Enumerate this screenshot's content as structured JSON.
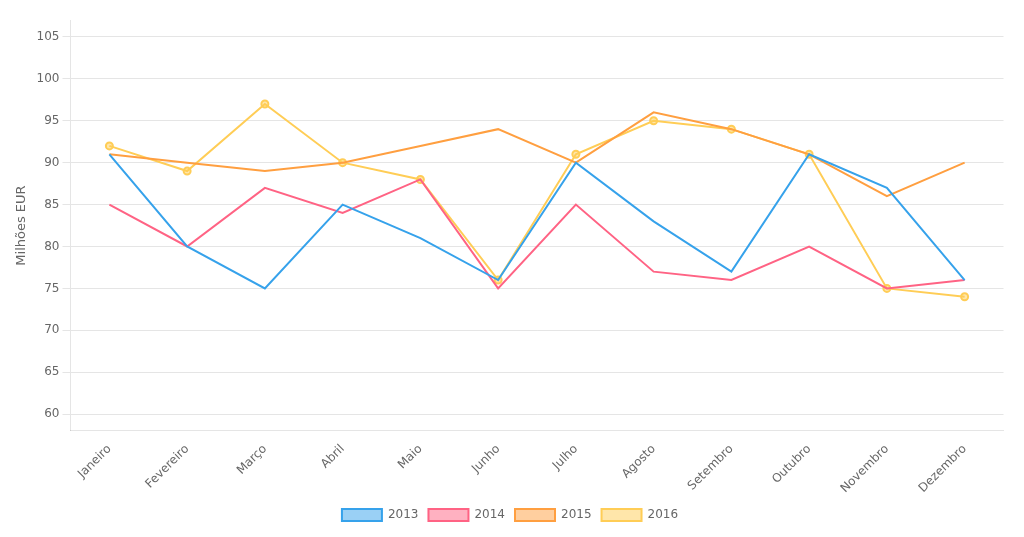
{
  "chart_data": {
    "type": "line",
    "categories": [
      "Janeiro",
      "Fevereiro",
      "Março",
      "Abril",
      "Maio",
      "Junho",
      "Julho",
      "Agosto",
      "Setembro",
      "Outubro",
      "Novembro",
      "Dezembro"
    ],
    "series": [
      {
        "name": "2013",
        "values": [
          91,
          80,
          75,
          85,
          81,
          76,
          90,
          83,
          77,
          91,
          87,
          76
        ],
        "marker": "none"
      },
      {
        "name": "2014",
        "values": [
          85,
          80,
          87,
          84,
          88,
          75,
          85,
          77,
          76,
          80,
          75,
          76
        ],
        "marker": "none"
      },
      {
        "name": "2015",
        "values": [
          91,
          90,
          89,
          90,
          92,
          94,
          90,
          96,
          94,
          91,
          86,
          90
        ],
        "marker": "none"
      },
      {
        "name": "2016",
        "values": [
          92,
          89,
          97,
          90,
          88,
          76,
          91,
          95,
          94,
          91,
          75,
          74
        ],
        "marker": "circle"
      }
    ],
    "y_label": "Milhões EUR",
    "ylim": [
      58,
      107
    ],
    "yticks": [
      60,
      65,
      70,
      75,
      80,
      85,
      90,
      95,
      100,
      105
    ],
    "grid": "y",
    "legend": "bottom"
  }
}
